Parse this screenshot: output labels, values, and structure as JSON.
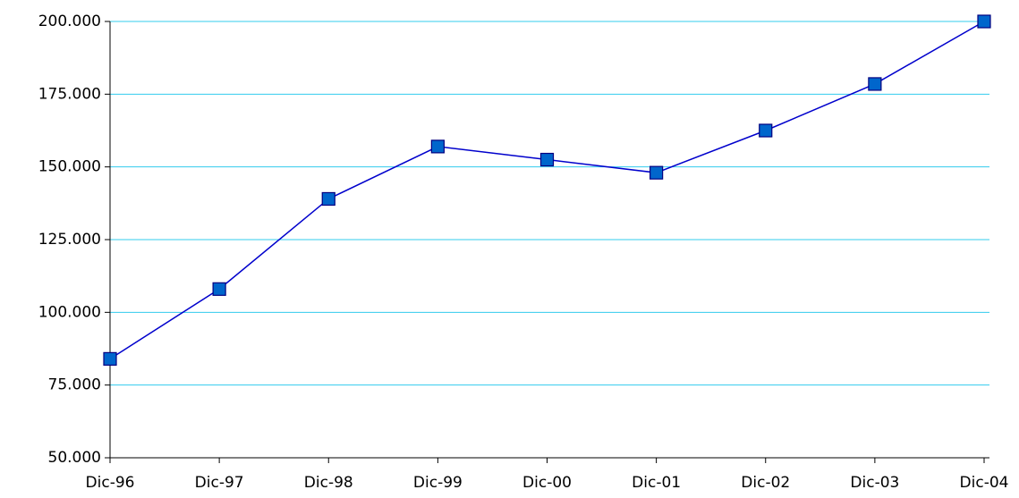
{
  "chart_data": {
    "type": "line",
    "categories": [
      "Dic-96",
      "Dic-97",
      "Dic-98",
      "Dic-99",
      "Dic-00",
      "Dic-01",
      "Dic-02",
      "Dic-03",
      "Dic-04"
    ],
    "values": [
      84000,
      108000,
      139000,
      157000,
      152500,
      148000,
      162500,
      178500,
      200000
    ],
    "color": "#0000cc",
    "marker_color": "#0066cc",
    "ylim": [
      50000,
      200000
    ],
    "yticks": [
      {
        "value": 50000,
        "label": "50.000"
      },
      {
        "value": 75000,
        "label": "75.000"
      },
      {
        "value": 100000,
        "label": "100.000"
      },
      {
        "value": 125000,
        "label": "125.000"
      },
      {
        "value": 150000,
        "label": "150.000"
      },
      {
        "value": 175000,
        "label": "175.000"
      },
      {
        "value": 200000,
        "label": "200.000"
      }
    ],
    "grid": true,
    "grid_color": "#33ccee"
  }
}
